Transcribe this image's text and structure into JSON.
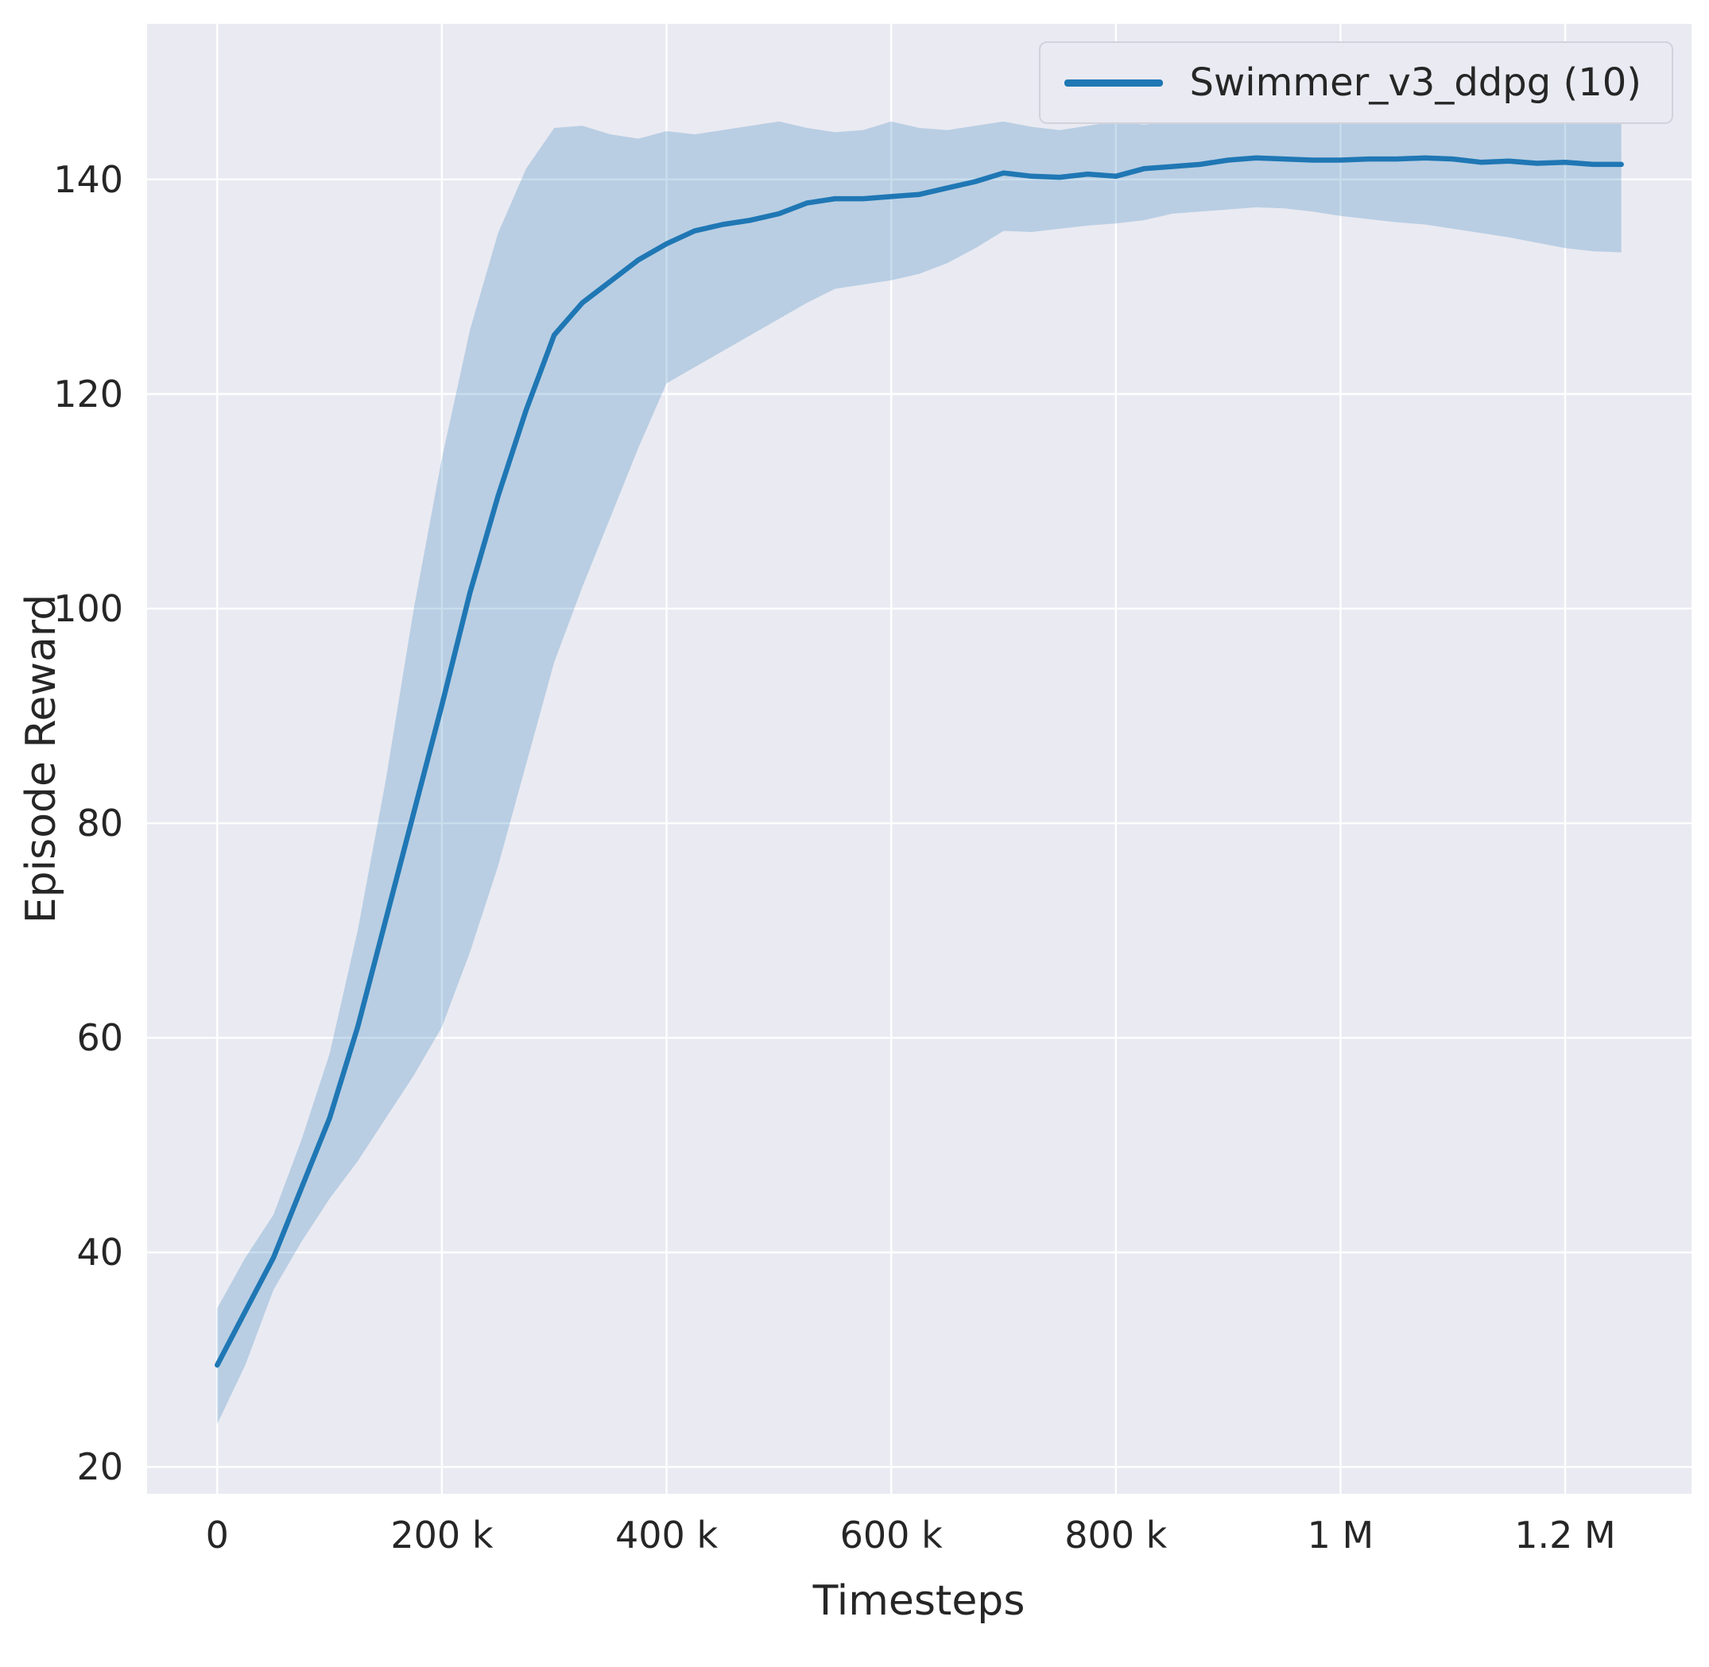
{
  "colors": {
    "figure_background": "#ffffff",
    "axes_background": "#eaeaf2",
    "grid": "#ffffff",
    "line": "#1f77b4",
    "band": "#1f77b4",
    "band_opacity": 0.24,
    "text": "#262626"
  },
  "chart_data": {
    "type": "line",
    "title": "",
    "xlabel": "Timesteps",
    "ylabel": "Episode Reward",
    "grid": true,
    "legend_position": "upper right",
    "xlim": [
      -62500,
      1312500
    ],
    "ylim": [
      17.5,
      154.5
    ],
    "xticks": [
      {
        "value": 0,
        "label": "0"
      },
      {
        "value": 200000,
        "label": "200 k"
      },
      {
        "value": 400000,
        "label": "400 k"
      },
      {
        "value": 600000,
        "label": "600 k"
      },
      {
        "value": 800000,
        "label": "800 k"
      },
      {
        "value": 1000000,
        "label": "1 M"
      },
      {
        "value": 1200000,
        "label": "1.2 M"
      }
    ],
    "yticks": [
      {
        "value": 20,
        "label": "20"
      },
      {
        "value": 40,
        "label": "40"
      },
      {
        "value": 60,
        "label": "60"
      },
      {
        "value": 80,
        "label": "80"
      },
      {
        "value": 100,
        "label": "100"
      },
      {
        "value": 120,
        "label": "120"
      },
      {
        "value": 140,
        "label": "140"
      }
    ],
    "series": [
      {
        "name": "Swimmer_v3_ddpg (10)",
        "color": "#1f77b4",
        "x": [
          0,
          25000,
          50000,
          75000,
          100000,
          125000,
          150000,
          175000,
          200000,
          225000,
          250000,
          275000,
          300000,
          325000,
          350000,
          375000,
          400000,
          425000,
          450000,
          475000,
          500000,
          525000,
          550000,
          575000,
          600000,
          625000,
          650000,
          675000,
          700000,
          725000,
          750000,
          775000,
          800000,
          825000,
          850000,
          875000,
          900000,
          925000,
          950000,
          975000,
          1000000,
          1025000,
          1050000,
          1075000,
          1100000,
          1125000,
          1150000,
          1175000,
          1200000,
          1225000,
          1250000
        ],
        "mean": [
          29.5,
          34.5,
          39.5,
          46,
          52.5,
          61,
          71,
          81,
          91,
          101.5,
          110.5,
          118.5,
          125.5,
          128.5,
          130.5,
          132.5,
          134,
          135.2,
          135.8,
          136.2,
          136.8,
          137.8,
          138.2,
          138.2,
          138.4,
          138.6,
          139.2,
          139.8,
          140.6,
          140.3,
          140.2,
          140.5,
          140.3,
          141,
          141.2,
          141.4,
          141.8,
          142,
          141.9,
          141.8,
          141.8,
          141.9,
          141.9,
          142,
          141.9,
          141.6,
          141.7,
          141.5,
          141.6,
          141.4,
          141.4
        ],
        "lower": [
          24,
          29.5,
          36.5,
          41,
          45,
          48.5,
          52.5,
          56.5,
          61,
          68,
          76,
          85.5,
          95,
          102,
          108.5,
          115,
          121,
          122.5,
          124,
          125.5,
          127,
          128.5,
          129.8,
          130.2,
          130.6,
          131.2,
          132.2,
          133.6,
          135.2,
          135.1,
          135.4,
          135.7,
          135.9,
          136.2,
          136.8,
          137,
          137.2,
          137.4,
          137.3,
          137,
          136.6,
          136.3,
          136,
          135.8,
          135.4,
          135,
          134.6,
          134.1,
          133.6,
          133.3,
          133.2
        ],
        "upper": [
          34.8,
          39.5,
          43.5,
          50.5,
          58.5,
          70,
          84,
          100,
          114,
          126,
          135,
          141,
          144.8,
          145,
          144.2,
          143.8,
          144.5,
          144.2,
          144.6,
          145,
          145.4,
          144.8,
          144.4,
          144.6,
          145.4,
          144.8,
          144.6,
          145,
          145.4,
          144.9,
          144.6,
          145,
          145.4,
          145.1,
          145.4,
          145.7,
          146,
          146.2,
          146.3,
          146.2,
          146.4,
          146.5,
          146.6,
          146.8,
          147,
          147.2,
          147.4,
          147.6,
          147.8,
          148,
          148.2
        ]
      }
    ]
  }
}
